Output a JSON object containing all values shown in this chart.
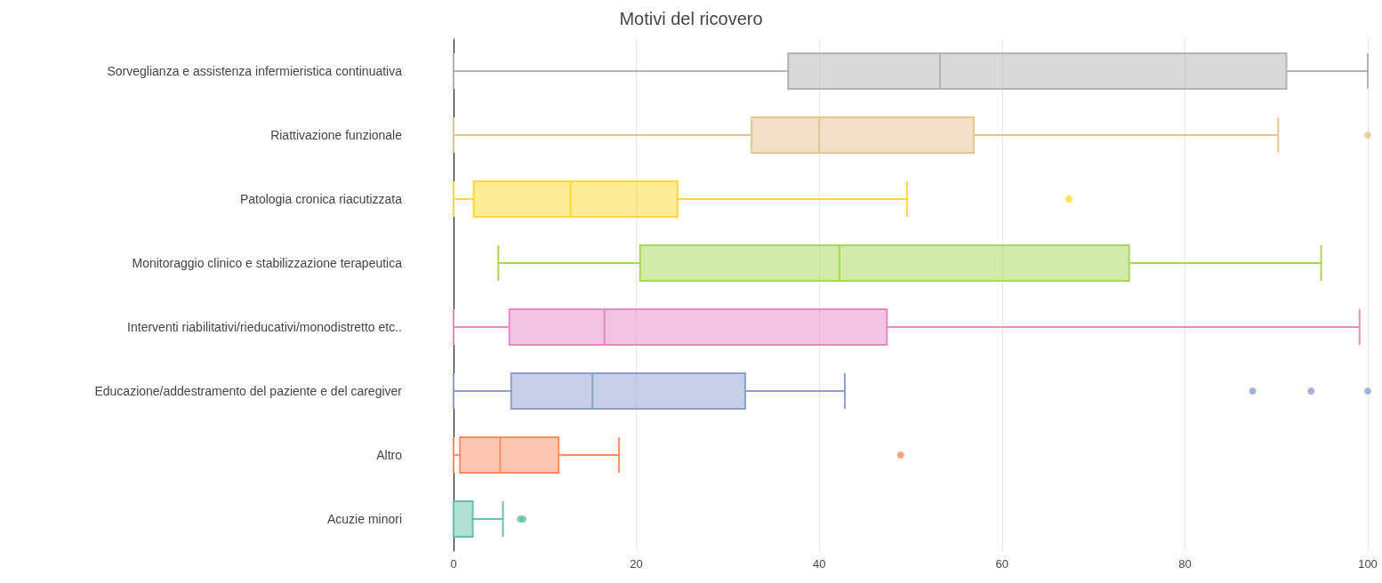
{
  "chart_data": {
    "type": "box",
    "title": "Motivi del ricovero",
    "orientation": "horizontal",
    "categories": [
      "Sorveglianza e assistenza infermieristica continuativa",
      "Riattivazione funzionale",
      "Patologia cronica riacutizzata",
      "Monitoraggio clinico e stabilizzazione terapeutica",
      "Interventi riabilitativi/rieducativi/monodistretto etc..",
      "Educazione/addestramento del paziente e del caregiver",
      "Altro",
      "Acuzie minori"
    ],
    "colors": [
      "#b3b3b3",
      "#e5c494",
      "#ffd92f",
      "#a6d854",
      "#e78ac3",
      "#8da0cb",
      "#fc8d62",
      "#66c2a5"
    ],
    "boxes": [
      {
        "low": 0,
        "q1": 36.6,
        "median": 53.2,
        "q3": 91.1,
        "high": 100
      },
      {
        "low": 0,
        "q1": 32.6,
        "median": 40,
        "q3": 56.9,
        "high": 90.2,
        "outliers": [
          100
        ]
      },
      {
        "low": 0,
        "q1": 2.2,
        "median": 12.8,
        "q3": 24.5,
        "high": 49.6,
        "outliers": [
          67.3
        ]
      },
      {
        "low": 4.9,
        "q1": 20.4,
        "median": 42.2,
        "q3": 73.9,
        "high": 94.9
      },
      {
        "low": 0,
        "q1": 6.1,
        "median": 16.5,
        "q3": 47.4,
        "high": 99.1
      },
      {
        "low": 0,
        "q1": 6.3,
        "median": 15.2,
        "q3": 31.9,
        "high": 42.8,
        "outliers": [
          87.4,
          93.8,
          100
        ]
      },
      {
        "low": 0,
        "q1": 0.7,
        "median": 5.1,
        "q3": 11.5,
        "high": 18.1,
        "outliers": [
          48.9
        ]
      },
      {
        "low": 0,
        "q1": 0,
        "median": 0,
        "q3": 2.1,
        "high": 5.4,
        "outliers": [
          7.3,
          7.6
        ]
      }
    ],
    "xlim": [
      0,
      100
    ],
    "xticks": [
      0,
      20,
      40,
      60,
      80,
      100
    ],
    "grid": "x"
  }
}
